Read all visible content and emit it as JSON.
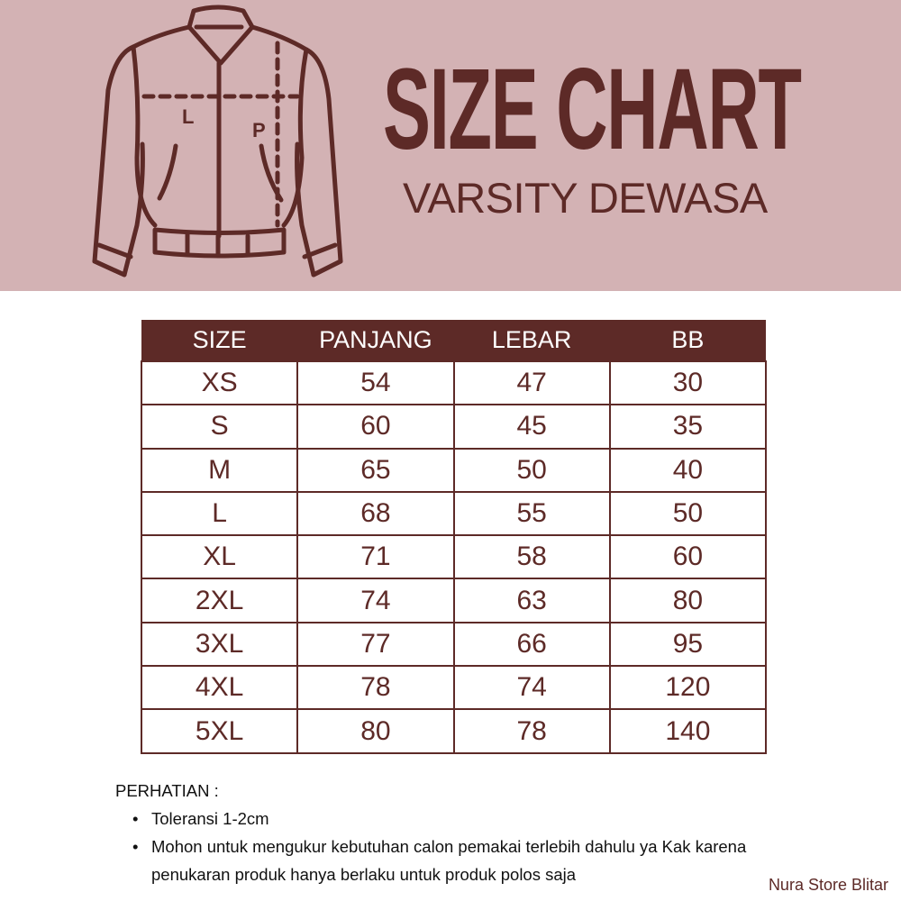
{
  "colors": {
    "banner": "#d3b2b4",
    "brand_dark": "#5d2a27"
  },
  "illustration": {
    "icon": "varsity-jacket-icon",
    "labels": {
      "width": "L",
      "length": "P"
    }
  },
  "title": "SIZE CHART",
  "subtitle": "VARSITY DEWASA",
  "table": {
    "headers": [
      "SIZE",
      "PANJANG",
      "LEBAR",
      "BB"
    ],
    "rows": [
      [
        "XS",
        "54",
        "47",
        "30"
      ],
      [
        "S",
        "60",
        "45",
        "35"
      ],
      [
        "M",
        "65",
        "50",
        "40"
      ],
      [
        "L",
        "68",
        "55",
        "50"
      ],
      [
        "XL",
        "71",
        "58",
        "60"
      ],
      [
        "2XL",
        "74",
        "63",
        "80"
      ],
      [
        "3XL",
        "77",
        "66",
        "95"
      ],
      [
        "4XL",
        "78",
        "74",
        "120"
      ],
      [
        "5XL",
        "80",
        "78",
        "140"
      ]
    ]
  },
  "notes": {
    "heading": "PERHATIAN :",
    "items": [
      "Toleransi 1-2cm",
      "Mohon untuk mengukur kebutuhan calon pemakai terlebih dahulu ya Kak karena penukaran produk hanya berlaku untuk produk polos saja"
    ]
  },
  "brand": "Nura Store Blitar"
}
